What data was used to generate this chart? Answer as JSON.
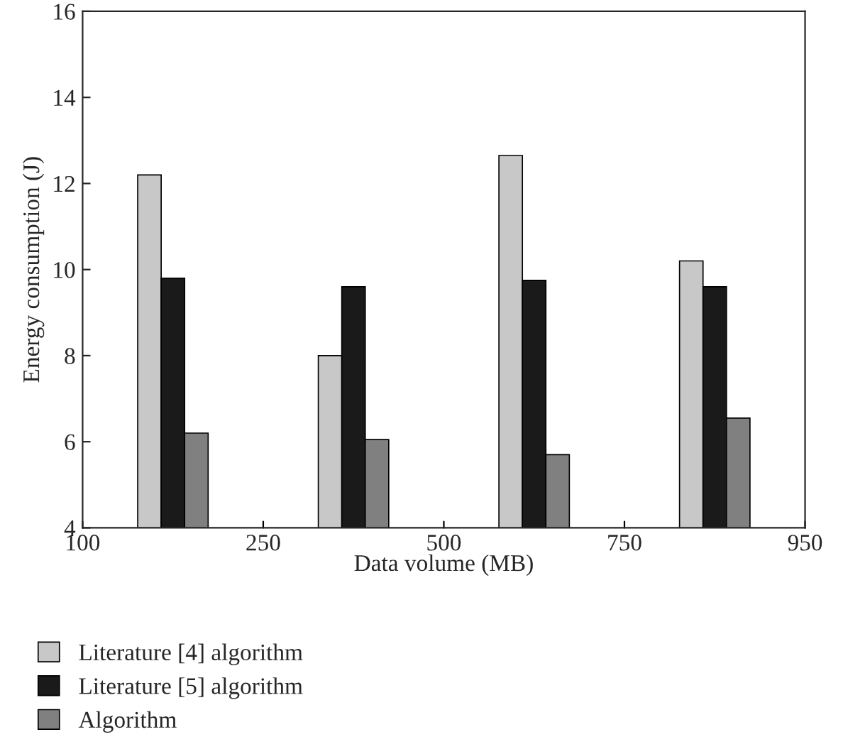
{
  "chart_data": {
    "type": "bar",
    "xlabel": "Data volume (MB)",
    "ylabel": "Energy consumption (J)",
    "categories": [
      null,
      null,
      null,
      null
    ],
    "annotations": [
      "100",
      "250",
      "500",
      "750",
      "950"
    ],
    "ylim": [
      4,
      16
    ],
    "yticks": [
      4,
      6,
      8,
      10,
      12,
      14,
      16
    ],
    "series": [
      {
        "name": "Literature [4] algorithm",
        "color": "#c8c8c8",
        "values": [
          12.2,
          8.0,
          12.65,
          10.2
        ]
      },
      {
        "name": "Literature [5] algorithm",
        "color": "#1a1a1a",
        "values": [
          9.8,
          9.6,
          9.75,
          9.6
        ]
      },
      {
        "name": "Algorithm",
        "color": "#808080",
        "values": [
          6.2,
          6.05,
          5.7,
          6.55
        ]
      }
    ],
    "grid": false,
    "legend": "bottom"
  }
}
